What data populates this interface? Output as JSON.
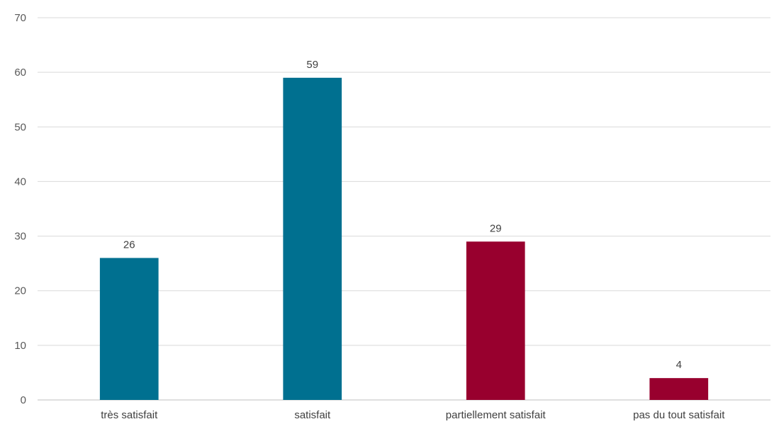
{
  "chart_data": {
    "type": "bar",
    "title": "",
    "xlabel": "",
    "ylabel": "",
    "categories": [
      "très satisfait",
      "satisfait",
      "partiellement satisfait",
      "pas du tout satisfait"
    ],
    "values": [
      26,
      59,
      29,
      4
    ],
    "colors": [
      "#007090",
      "#007090",
      "#98002e",
      "#98002e"
    ],
    "data_labels": [
      "26",
      "59",
      "29",
      "4"
    ],
    "ylim": [
      0,
      70
    ],
    "yticks": [
      0,
      10,
      20,
      30,
      40,
      50,
      60,
      70
    ],
    "ytick_labels": [
      "0",
      "10",
      "20",
      "30",
      "40",
      "50",
      "60",
      "70"
    ],
    "grid": true,
    "legend": "none"
  }
}
